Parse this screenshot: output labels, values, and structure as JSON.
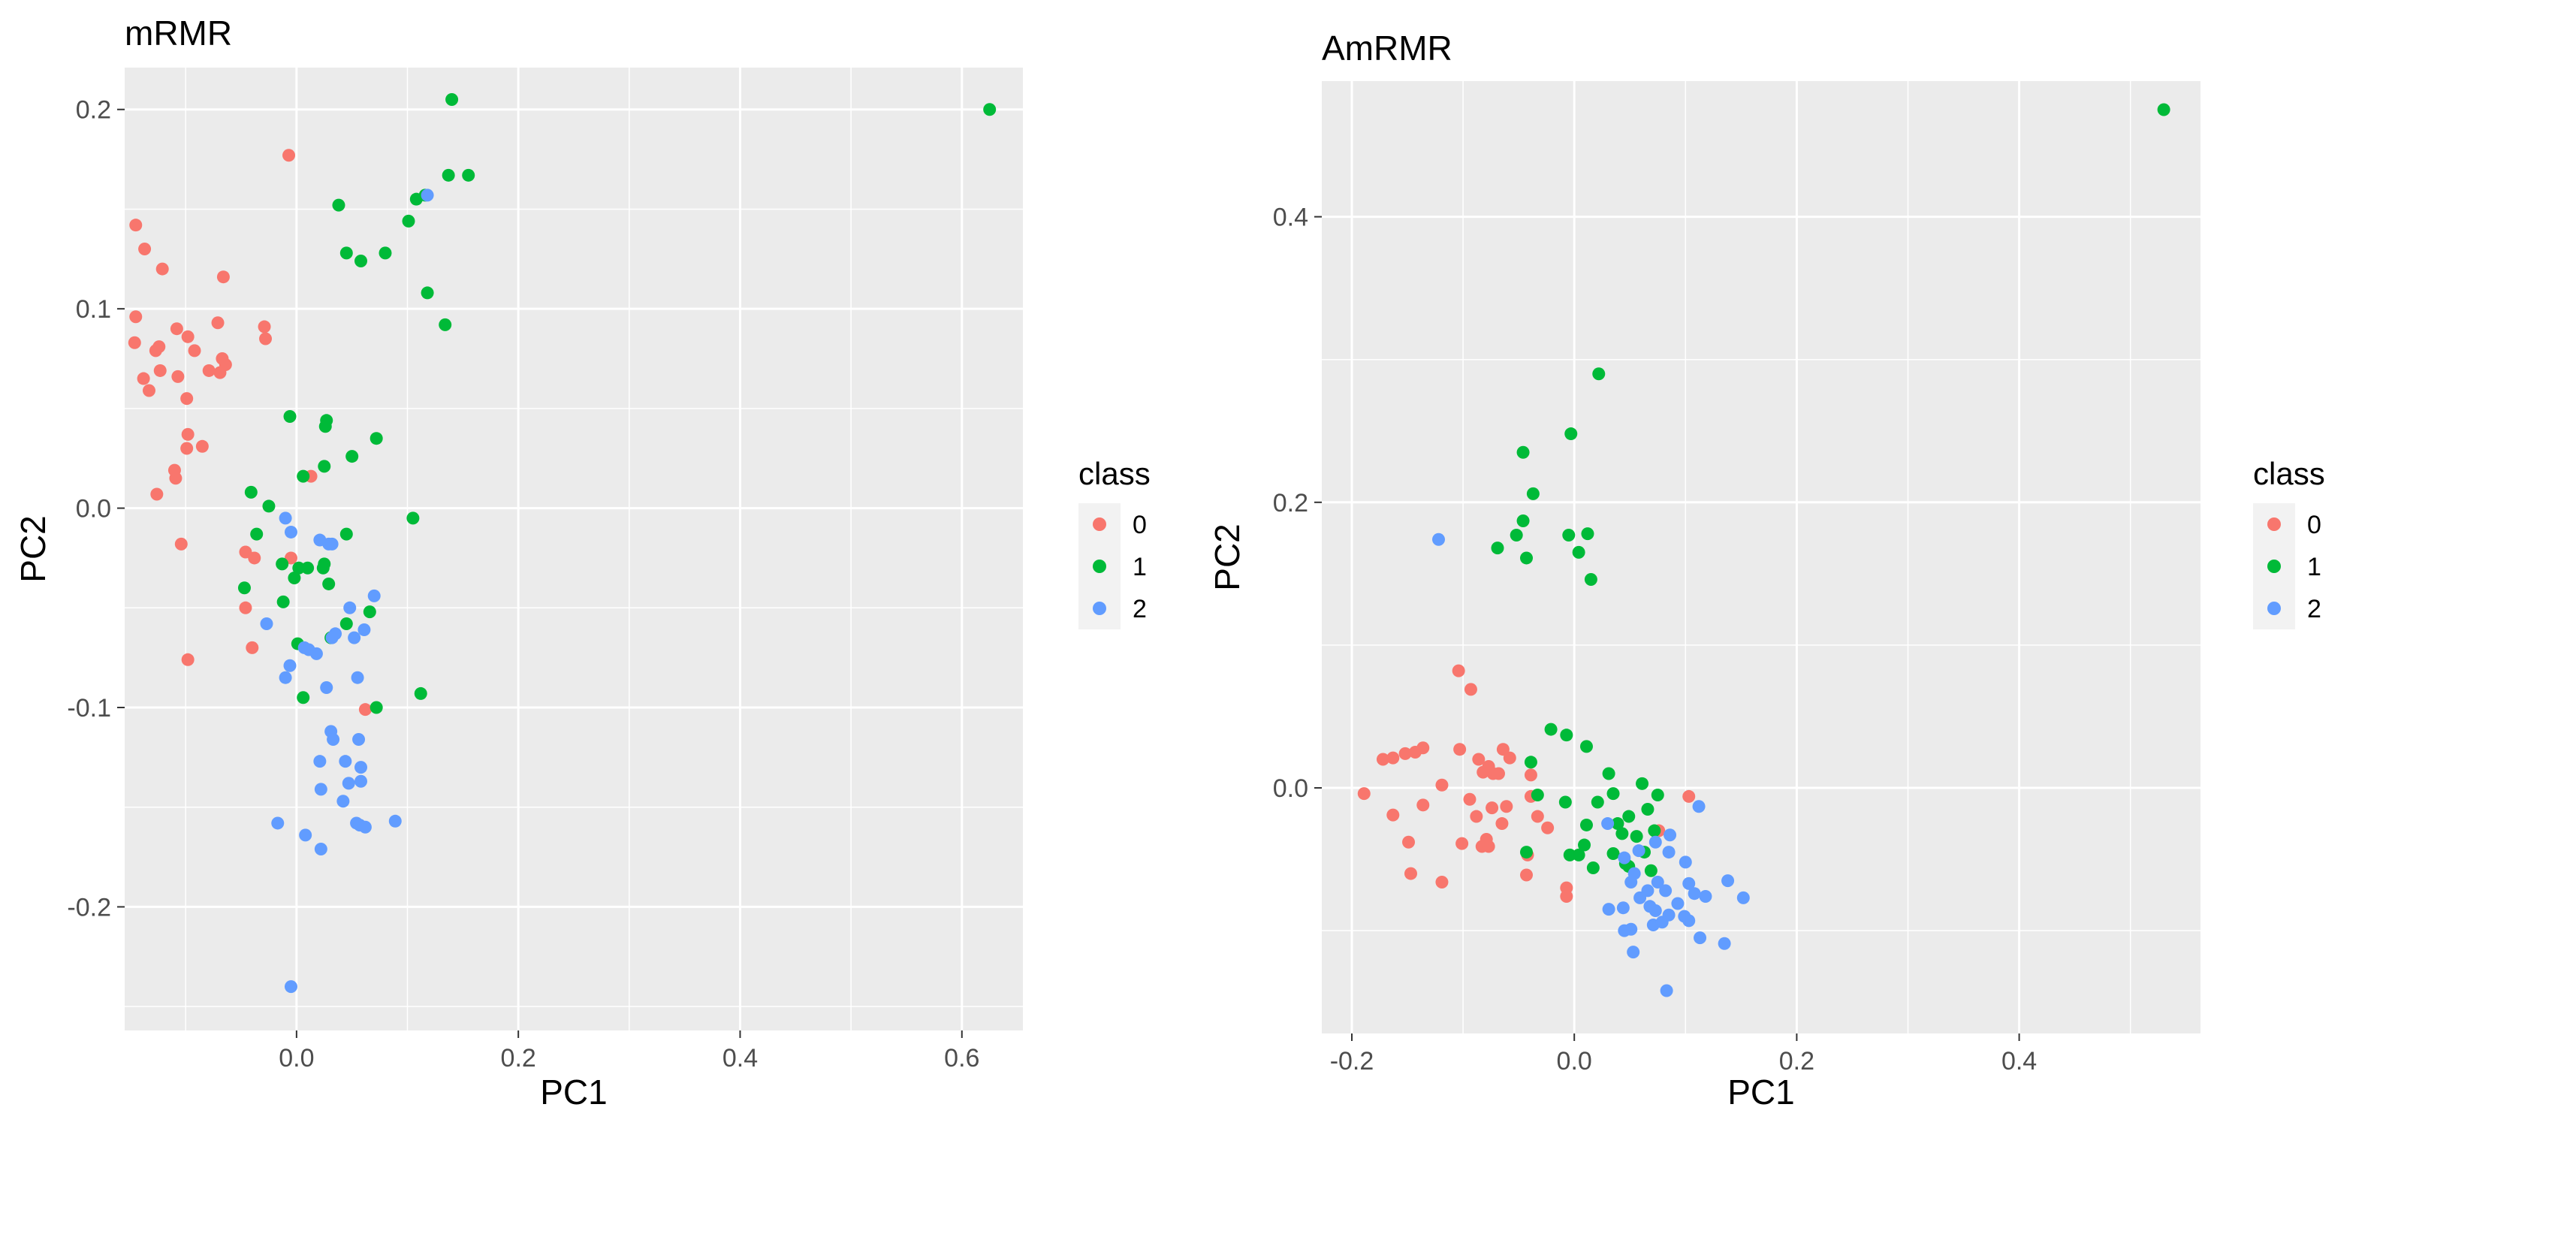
{
  "colors": {
    "class_0": "#f8766d",
    "class_1": "#00ba38",
    "class_2": "#619cff",
    "panel_background": "#ebebeb",
    "grid": "#ffffff",
    "legend_key_background": "#f2f2f2"
  },
  "chart_data": [
    {
      "type": "scatter",
      "title": "mRMR",
      "xlabel": "PC1",
      "ylabel": "PC2",
      "xlim": [
        -0.155,
        0.655
      ],
      "ylim": [
        -0.262,
        0.221
      ],
      "x_ticks": [
        0.0,
        0.2,
        0.4,
        0.6
      ],
      "x_tick_labels": [
        "0.0",
        "0.2",
        "0.4",
        "0.6"
      ],
      "y_ticks": [
        -0.2,
        -0.1,
        0.0,
        0.1,
        0.2
      ],
      "y_tick_labels": [
        "-0.2",
        "-0.1",
        "0.0",
        "0.1",
        "0.2"
      ],
      "grid": true,
      "legend": {
        "title": "class",
        "placement": "right",
        "labels": [
          "0",
          "1",
          "2"
        ]
      },
      "series": [
        {
          "name": "0",
          "points": [
            [
              -0.145,
              0.142
            ],
            [
              -0.137,
              0.13
            ],
            [
              -0.121,
              0.12
            ],
            [
              -0.145,
              0.096
            ],
            [
              -0.146,
              0.083
            ],
            [
              -0.127,
              0.079
            ],
            [
              -0.124,
              0.081
            ],
            [
              -0.108,
              0.09
            ],
            [
              -0.098,
              0.086
            ],
            [
              -0.092,
              0.079
            ],
            [
              -0.071,
              0.093
            ],
            [
              -0.066,
              0.116
            ],
            [
              -0.138,
              0.065
            ],
            [
              -0.133,
              0.059
            ],
            [
              -0.123,
              0.069
            ],
            [
              -0.107,
              0.066
            ],
            [
              -0.099,
              0.055
            ],
            [
              -0.079,
              0.069
            ],
            [
              -0.069,
              0.068
            ],
            [
              -0.067,
              0.075
            ],
            [
              -0.064,
              0.072
            ],
            [
              -0.029,
              0.091
            ],
            [
              -0.028,
              0.085
            ],
            [
              -0.098,
              0.037
            ],
            [
              -0.099,
              0.03
            ],
            [
              -0.085,
              0.031
            ],
            [
              -0.11,
              0.019
            ],
            [
              -0.109,
              0.015
            ],
            [
              -0.126,
              0.007
            ],
            [
              -0.104,
              -0.018
            ],
            [
              -0.007,
              0.177
            ],
            [
              -0.046,
              -0.022
            ],
            [
              -0.038,
              -0.025
            ],
            [
              -0.046,
              -0.05
            ],
            [
              -0.04,
              -0.07
            ],
            [
              -0.098,
              -0.076
            ],
            [
              -0.005,
              -0.025
            ],
            [
              0.013,
              0.016
            ],
            [
              0.062,
              -0.101
            ]
          ]
        },
        {
          "name": "1",
          "points": [
            [
              0.625,
              0.2
            ],
            [
              0.14,
              0.205
            ],
            [
              0.137,
              0.167
            ],
            [
              0.155,
              0.167
            ],
            [
              0.116,
              0.157
            ],
            [
              0.108,
              0.155
            ],
            [
              0.101,
              0.144
            ],
            [
              0.038,
              0.152
            ],
            [
              0.045,
              0.128
            ],
            [
              0.058,
              0.124
            ],
            [
              0.08,
              0.128
            ],
            [
              0.118,
              0.108
            ],
            [
              0.134,
              0.092
            ],
            [
              -0.006,
              0.046
            ],
            [
              0.027,
              0.044
            ],
            [
              0.026,
              0.041
            ],
            [
              0.072,
              0.035
            ],
            [
              0.05,
              0.026
            ],
            [
              0.025,
              0.021
            ],
            [
              0.006,
              0.016
            ],
            [
              -0.041,
              0.008
            ],
            [
              -0.025,
              0.001
            ],
            [
              -0.036,
              -0.013
            ],
            [
              0.045,
              -0.013
            ],
            [
              0.105,
              -0.005
            ],
            [
              0.01,
              -0.03
            ],
            [
              0.002,
              -0.03
            ],
            [
              -0.013,
              -0.028
            ],
            [
              0.025,
              -0.028
            ],
            [
              0.024,
              -0.03
            ],
            [
              -0.047,
              -0.04
            ],
            [
              -0.002,
              -0.035
            ],
            [
              0.029,
              -0.038
            ],
            [
              -0.012,
              -0.047
            ],
            [
              0.066,
              -0.052
            ],
            [
              0.045,
              -0.058
            ],
            [
              0.001,
              -0.068
            ],
            [
              0.031,
              -0.065
            ],
            [
              0.112,
              -0.093
            ],
            [
              0.072,
              -0.1
            ],
            [
              0.006,
              -0.095
            ]
          ]
        },
        {
          "name": "2",
          "points": [
            [
              0.118,
              0.157
            ],
            [
              -0.01,
              -0.005
            ],
            [
              -0.005,
              -0.012
            ],
            [
              0.021,
              -0.016
            ],
            [
              0.029,
              -0.018
            ],
            [
              0.032,
              -0.018
            ],
            [
              0.048,
              -0.05
            ],
            [
              0.07,
              -0.044
            ],
            [
              -0.027,
              -0.058
            ],
            [
              0.007,
              -0.07
            ],
            [
              0.018,
              -0.073
            ],
            [
              0.011,
              -0.071
            ],
            [
              0.035,
              -0.063
            ],
            [
              0.032,
              -0.065
            ],
            [
              0.052,
              -0.065
            ],
            [
              0.061,
              -0.061
            ],
            [
              -0.006,
              -0.079
            ],
            [
              -0.01,
              -0.085
            ],
            [
              0.055,
              -0.085
            ],
            [
              0.027,
              -0.09
            ],
            [
              0.031,
              -0.112
            ],
            [
              0.033,
              -0.116
            ],
            [
              0.056,
              -0.116
            ],
            [
              0.058,
              -0.13
            ],
            [
              0.058,
              -0.137
            ],
            [
              0.044,
              -0.127
            ],
            [
              0.021,
              -0.127
            ],
            [
              0.022,
              -0.141
            ],
            [
              0.047,
              -0.138
            ],
            [
              0.042,
              -0.147
            ],
            [
              0.054,
              -0.158
            ],
            [
              0.057,
              -0.159
            ],
            [
              0.062,
              -0.16
            ],
            [
              0.089,
              -0.157
            ],
            [
              -0.017,
              -0.158
            ],
            [
              0.008,
              -0.164
            ],
            [
              0.022,
              -0.171
            ],
            [
              -0.005,
              -0.24
            ]
          ]
        }
      ]
    },
    {
      "type": "scatter",
      "title": "AmRMR",
      "xlabel": "PC1",
      "ylabel": "PC2",
      "xlim": [
        -0.227,
        0.563
      ],
      "ylim": [
        -0.172,
        0.495
      ],
      "x_ticks": [
        -0.2,
        0.0,
        0.2,
        0.4
      ],
      "x_tick_labels": [
        "-0.2",
        "0.0",
        "0.2",
        "0.4"
      ],
      "y_ticks": [
        0.0,
        0.2,
        0.4
      ],
      "y_tick_labels": [
        "0.0",
        "0.2",
        "0.4"
      ],
      "grid": true,
      "legend": {
        "title": "class",
        "placement": "right",
        "labels": [
          "0",
          "1",
          "2"
        ]
      },
      "series": [
        {
          "name": "0",
          "points": [
            [
              -0.104,
              0.082
            ],
            [
              -0.093,
              0.069
            ],
            [
              -0.172,
              0.02
            ],
            [
              -0.163,
              0.021
            ],
            [
              -0.152,
              0.024
            ],
            [
              -0.143,
              0.025
            ],
            [
              -0.136,
              0.028
            ],
            [
              -0.119,
              0.002
            ],
            [
              -0.103,
              0.027
            ],
            [
              -0.086,
              0.02
            ],
            [
              -0.082,
              0.011
            ],
            [
              -0.077,
              0.015
            ],
            [
              -0.073,
              0.01
            ],
            [
              -0.064,
              0.027
            ],
            [
              -0.068,
              0.01
            ],
            [
              -0.058,
              0.021
            ],
            [
              -0.039,
              0.009
            ],
            [
              -0.189,
              -0.004
            ],
            [
              -0.163,
              -0.019
            ],
            [
              -0.136,
              -0.012
            ],
            [
              -0.094,
              -0.008
            ],
            [
              -0.088,
              -0.02
            ],
            [
              -0.074,
              -0.014
            ],
            [
              -0.065,
              -0.025
            ],
            [
              -0.061,
              -0.013
            ],
            [
              -0.039,
              -0.006
            ],
            [
              -0.033,
              -0.02
            ],
            [
              -0.149,
              -0.038
            ],
            [
              -0.101,
              -0.039
            ],
            [
              -0.083,
              -0.041
            ],
            [
              -0.079,
              -0.036
            ],
            [
              -0.077,
              -0.041
            ],
            [
              -0.042,
              -0.047
            ],
            [
              -0.024,
              -0.028
            ],
            [
              -0.147,
              -0.06
            ],
            [
              -0.119,
              -0.066
            ],
            [
              -0.043,
              -0.061
            ],
            [
              -0.007,
              -0.07
            ],
            [
              -0.007,
              -0.076
            ],
            [
              0.103,
              -0.006
            ],
            [
              0.076,
              -0.03
            ]
          ]
        },
        {
          "name": "1",
          "points": [
            [
              0.53,
              0.475
            ],
            [
              0.022,
              0.29
            ],
            [
              -0.003,
              0.248
            ],
            [
              -0.046,
              0.235
            ],
            [
              -0.037,
              0.206
            ],
            [
              -0.052,
              0.177
            ],
            [
              -0.069,
              0.168
            ],
            [
              -0.046,
              0.187
            ],
            [
              -0.043,
              0.161
            ],
            [
              -0.005,
              0.177
            ],
            [
              0.004,
              0.165
            ],
            [
              0.012,
              0.178
            ],
            [
              0.015,
              0.146
            ],
            [
              -0.021,
              0.041
            ],
            [
              -0.007,
              0.037
            ],
            [
              0.011,
              0.029
            ],
            [
              -0.039,
              0.018
            ],
            [
              -0.033,
              -0.005
            ],
            [
              -0.008,
              -0.01
            ],
            [
              0.031,
              0.01
            ],
            [
              0.035,
              -0.004
            ],
            [
              0.061,
              0.003
            ],
            [
              0.075,
              -0.005
            ],
            [
              0.021,
              -0.01
            ],
            [
              0.049,
              -0.02
            ],
            [
              0.066,
              -0.015
            ],
            [
              0.011,
              -0.026
            ],
            [
              0.039,
              -0.025
            ],
            [
              0.043,
              -0.032
            ],
            [
              0.056,
              -0.034
            ],
            [
              0.072,
              -0.03
            ],
            [
              0.009,
              -0.04
            ],
            [
              0.004,
              -0.047
            ],
            [
              -0.004,
              -0.047
            ],
            [
              0.017,
              -0.056
            ],
            [
              0.035,
              -0.046
            ],
            [
              0.046,
              -0.053
            ],
            [
              0.049,
              -0.055
            ],
            [
              0.063,
              -0.045
            ],
            [
              0.069,
              -0.058
            ],
            [
              -0.043,
              -0.045
            ]
          ]
        },
        {
          "name": "2",
          "points": [
            [
              -0.122,
              0.174
            ],
            [
              0.03,
              -0.025
            ],
            [
              0.086,
              -0.033
            ],
            [
              0.112,
              -0.013
            ],
            [
              0.073,
              -0.038
            ],
            [
              0.058,
              -0.044
            ],
            [
              0.045,
              -0.049
            ],
            [
              0.085,
              -0.045
            ],
            [
              0.1,
              -0.052
            ],
            [
              0.054,
              -0.06
            ],
            [
              0.051,
              -0.066
            ],
            [
              0.075,
              -0.066
            ],
            [
              0.066,
              -0.072
            ],
            [
              0.059,
              -0.077
            ],
            [
              0.068,
              -0.083
            ],
            [
              0.082,
              -0.072
            ],
            [
              0.093,
              -0.081
            ],
            [
              0.103,
              -0.067
            ],
            [
              0.108,
              -0.074
            ],
            [
              0.118,
              -0.076
            ],
            [
              0.138,
              -0.065
            ],
            [
              0.152,
              -0.077
            ],
            [
              0.044,
              -0.084
            ],
            [
              0.031,
              -0.085
            ],
            [
              0.073,
              -0.086
            ],
            [
              0.085,
              -0.089
            ],
            [
              0.099,
              -0.09
            ],
            [
              0.071,
              -0.096
            ],
            [
              0.079,
              -0.094
            ],
            [
              0.103,
              -0.093
            ],
            [
              0.051,
              -0.099
            ],
            [
              0.045,
              -0.1
            ],
            [
              0.113,
              -0.105
            ],
            [
              0.135,
              -0.109
            ],
            [
              0.053,
              -0.115
            ],
            [
              0.083,
              -0.142
            ]
          ]
        }
      ]
    }
  ]
}
